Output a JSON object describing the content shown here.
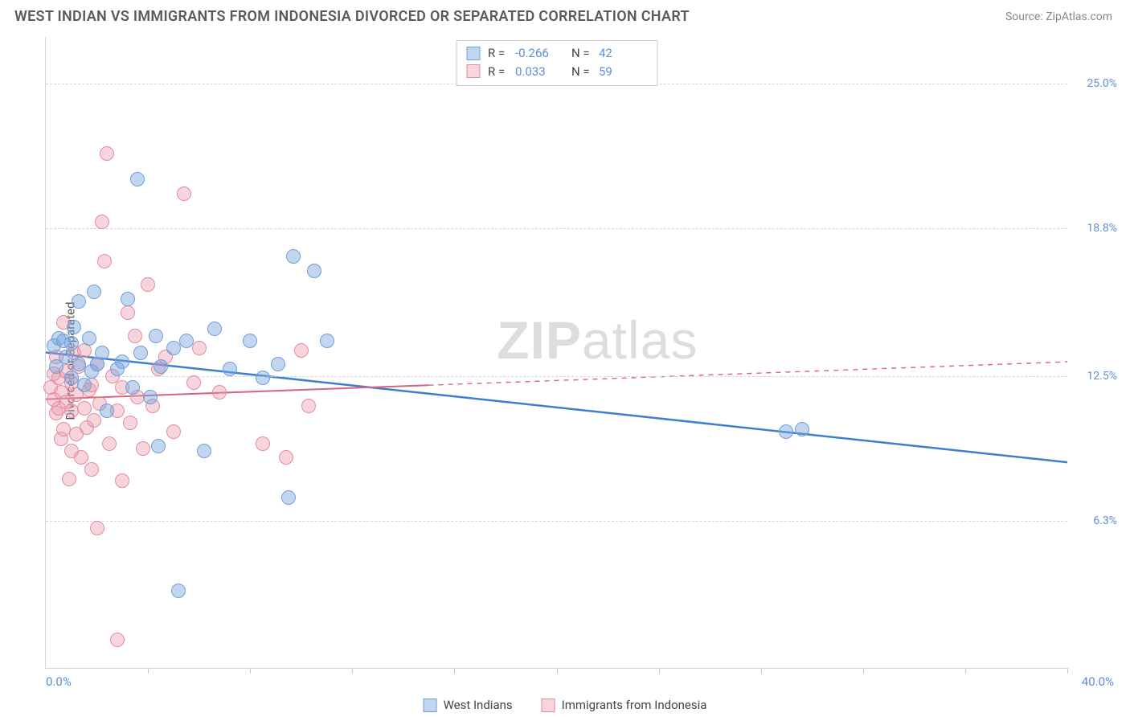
{
  "title": "WEST INDIAN VS IMMIGRANTS FROM INDONESIA DIVORCED OR SEPARATED CORRELATION CHART",
  "source": "Source: ZipAtlas.com",
  "watermark_bold": "ZIP",
  "watermark_rest": "atlas",
  "chart": {
    "type": "scatter",
    "ylabel": "Divorced or Separated",
    "xlim": [
      0,
      40
    ],
    "ylim": [
      0,
      27
    ],
    "xticks_label": [
      {
        "v": 0,
        "label": "0.0%"
      },
      {
        "v": 40,
        "label": "40.0%"
      }
    ],
    "xticks_minor": [
      4,
      8,
      12,
      16,
      20,
      24,
      28,
      32,
      36,
      40
    ],
    "yticks": [
      {
        "v": 6.3,
        "label": "6.3%"
      },
      {
        "v": 12.5,
        "label": "12.5%"
      },
      {
        "v": 18.8,
        "label": "18.8%"
      },
      {
        "v": 25.0,
        "label": "25.0%"
      }
    ],
    "background_color": "#ffffff",
    "grid_color": "#d6d6d6",
    "axis_color": "#d6d6d6",
    "tick_label_color": "#5b8fd6",
    "point_radius": 9,
    "point_opacity": 0.45,
    "series": [
      {
        "name": "West Indians",
        "color_fill": "rgba(120,163,219,0.45)",
        "color_stroke": "#6f9fd8",
        "R": "-0.266",
        "N": "42",
        "trend": {
          "y_at_x0": 13.5,
          "y_at_x40": 8.8,
          "solid_until_x": 40,
          "color": "#3f7fd0",
          "width": 2.5
        },
        "points": [
          [
            0.3,
            13.8
          ],
          [
            0.5,
            14.1
          ],
          [
            0.4,
            12.9
          ],
          [
            0.7,
            14.0
          ],
          [
            0.8,
            13.3
          ],
          [
            1.0,
            13.9
          ],
          [
            1.0,
            12.4
          ],
          [
            1.1,
            14.6
          ],
          [
            1.3,
            13.0
          ],
          [
            1.3,
            15.7
          ],
          [
            1.5,
            12.1
          ],
          [
            1.7,
            14.1
          ],
          [
            1.8,
            12.7
          ],
          [
            1.9,
            16.1
          ],
          [
            2.0,
            13.0
          ],
          [
            2.2,
            13.5
          ],
          [
            2.4,
            11.0
          ],
          [
            2.8,
            12.8
          ],
          [
            3.0,
            13.1
          ],
          [
            3.2,
            15.8
          ],
          [
            3.4,
            12.0
          ],
          [
            3.6,
            20.9
          ],
          [
            3.7,
            13.5
          ],
          [
            4.1,
            11.6
          ],
          [
            4.3,
            14.2
          ],
          [
            4.4,
            9.5
          ],
          [
            4.5,
            12.9
          ],
          [
            5.0,
            13.7
          ],
          [
            5.2,
            3.3
          ],
          [
            5.5,
            14.0
          ],
          [
            6.2,
            9.3
          ],
          [
            6.6,
            14.5
          ],
          [
            7.2,
            12.8
          ],
          [
            8.0,
            14.0
          ],
          [
            8.5,
            12.4
          ],
          [
            9.1,
            13.0
          ],
          [
            9.5,
            7.3
          ],
          [
            9.7,
            17.6
          ],
          [
            10.5,
            17.0
          ],
          [
            11.0,
            14.0
          ],
          [
            29.0,
            10.1
          ],
          [
            29.6,
            10.2
          ]
        ]
      },
      {
        "name": "Immigrants from Indonesia",
        "color_fill": "rgba(236,150,170,0.40)",
        "color_stroke": "#e68aa0",
        "R": "0.033",
        "N": "59",
        "trend": {
          "y_at_x0": 11.5,
          "y_at_x40": 13.1,
          "solid_until_x": 15,
          "color": "#d6657f",
          "width": 2
        },
        "points": [
          [
            0.2,
            12.0
          ],
          [
            0.3,
            11.5
          ],
          [
            0.3,
            12.6
          ],
          [
            0.4,
            10.9
          ],
          [
            0.4,
            13.3
          ],
          [
            0.5,
            11.1
          ],
          [
            0.5,
            12.4
          ],
          [
            0.6,
            9.8
          ],
          [
            0.6,
            11.8
          ],
          [
            0.7,
            14.8
          ],
          [
            0.7,
            10.2
          ],
          [
            0.8,
            11.4
          ],
          [
            0.8,
            12.7
          ],
          [
            0.9,
            8.1
          ],
          [
            1.0,
            11.0
          ],
          [
            1.0,
            12.2
          ],
          [
            1.0,
            9.3
          ],
          [
            1.1,
            13.5
          ],
          [
            1.2,
            10.0
          ],
          [
            1.2,
            11.7
          ],
          [
            1.3,
            12.9
          ],
          [
            1.4,
            9.0
          ],
          [
            1.5,
            11.1
          ],
          [
            1.5,
            13.6
          ],
          [
            1.6,
            10.3
          ],
          [
            1.7,
            11.9
          ],
          [
            1.8,
            8.5
          ],
          [
            1.8,
            12.1
          ],
          [
            1.9,
            10.6
          ],
          [
            2.0,
            13.0
          ],
          [
            2.0,
            6.0
          ],
          [
            2.1,
            11.3
          ],
          [
            2.2,
            19.1
          ],
          [
            2.3,
            17.4
          ],
          [
            2.4,
            22.0
          ],
          [
            2.5,
            9.6
          ],
          [
            2.6,
            12.5
          ],
          [
            2.8,
            11.0
          ],
          [
            2.8,
            1.2
          ],
          [
            3.0,
            12.0
          ],
          [
            3.0,
            8.0
          ],
          [
            3.2,
            15.2
          ],
          [
            3.3,
            10.5
          ],
          [
            3.5,
            14.2
          ],
          [
            3.6,
            11.6
          ],
          [
            3.8,
            9.4
          ],
          [
            4.0,
            16.4
          ],
          [
            4.2,
            11.2
          ],
          [
            4.4,
            12.8
          ],
          [
            4.7,
            13.3
          ],
          [
            5.0,
            10.1
          ],
          [
            5.4,
            20.3
          ],
          [
            5.8,
            12.2
          ],
          [
            6.0,
            13.7
          ],
          [
            6.8,
            11.8
          ],
          [
            8.5,
            9.6
          ],
          [
            9.4,
            9.0
          ],
          [
            10.0,
            13.6
          ],
          [
            10.3,
            11.2
          ]
        ]
      }
    ]
  },
  "bottom_legend": [
    {
      "label": "West Indians",
      "fill": "rgba(120,163,219,0.45)",
      "stroke": "#6f9fd8"
    },
    {
      "label": "Immigrants from Indonesia",
      "fill": "rgba(236,150,170,0.40)",
      "stroke": "#e68aa0"
    }
  ]
}
